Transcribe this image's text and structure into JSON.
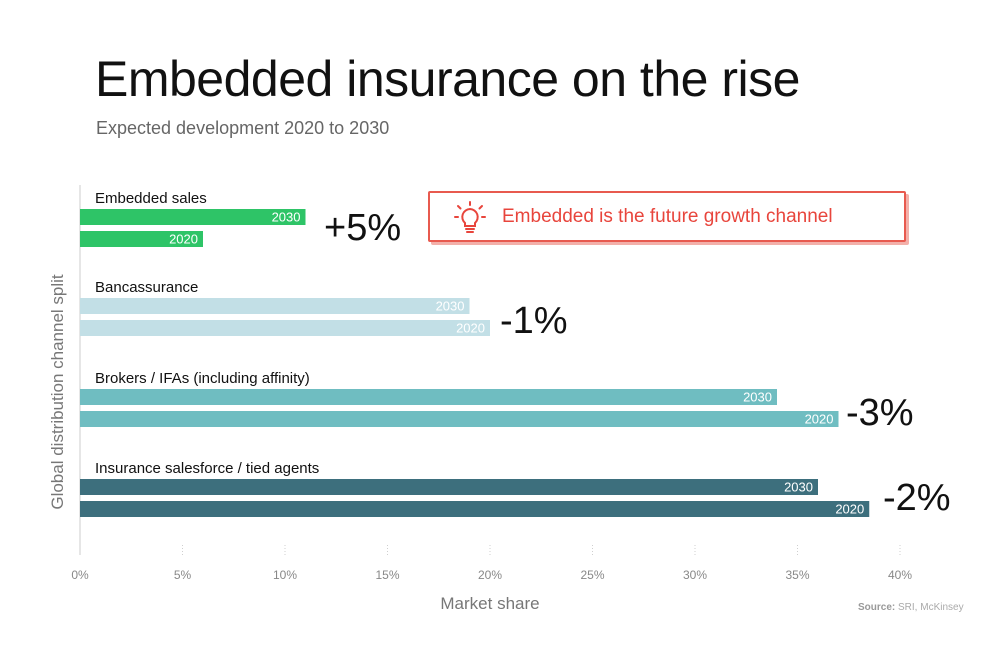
{
  "title": "Embedded insurance on the rise",
  "subtitle": "Expected development 2020 to 2030",
  "source_label": "Source:",
  "source_text": "SRI, McKinsey",
  "callout": {
    "text": "Embedded is the future growth channel",
    "icon": "lightbulb-icon",
    "color": "#e8453c"
  },
  "chart_data": {
    "type": "bar",
    "orientation": "horizontal",
    "title": "Embedded insurance on the rise",
    "subtitle": "Expected development 2020 to 2030",
    "xlabel": "Market share",
    "ylabel": "Global distribution channel split",
    "xlim": [
      0,
      40
    ],
    "xticks": [
      "0%",
      "5%",
      "10%",
      "15%",
      "20%",
      "25%",
      "30%",
      "35%",
      "40%"
    ],
    "grid": "vertical dotted",
    "groups": [
      {
        "name": "Embedded sales",
        "color": "#2ec467",
        "bars": [
          {
            "year": "2030",
            "value": 11
          },
          {
            "year": "2020",
            "value": 6
          }
        ],
        "delta": "+5%"
      },
      {
        "name": "Bancassurance",
        "color": "#c2dfe6",
        "bars": [
          {
            "year": "2030",
            "value": 19
          },
          {
            "year": "2020",
            "value": 20
          }
        ],
        "delta": "-1%"
      },
      {
        "name": "Brokers / IFAs (including affinity)",
        "color": "#6fbdc1",
        "bars": [
          {
            "year": "2030",
            "value": 34
          },
          {
            "year": "2020",
            "value": 37
          }
        ],
        "delta": "-3%"
      },
      {
        "name": "Insurance salesforce / tied agents",
        "color": "#3d6f7d",
        "bars": [
          {
            "year": "2030",
            "value": 36
          },
          {
            "year": "2020",
            "value": 38.5
          }
        ],
        "delta": "-2%"
      }
    ]
  }
}
